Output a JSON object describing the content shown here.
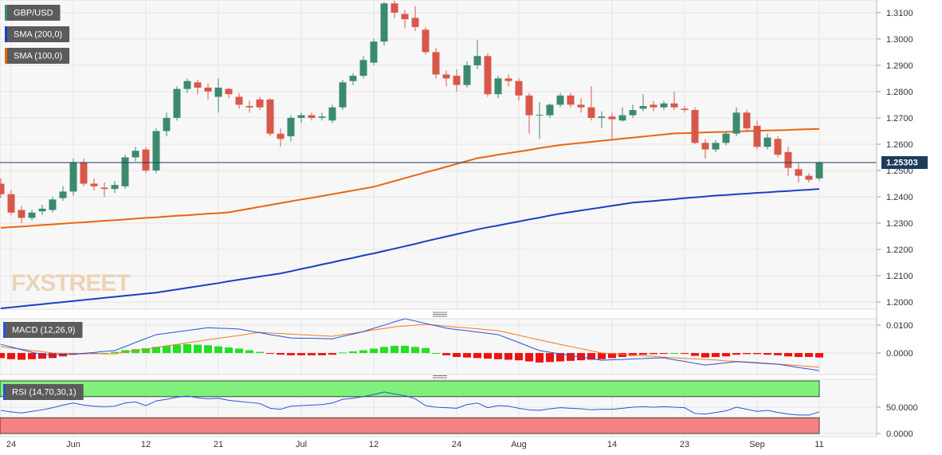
{
  "chart_data": [
    {
      "type": "candlestick",
      "name": "GBP/USD",
      "watermark": "FXSTREET",
      "categories": [
        null,
        "24",
        null,
        null,
        null,
        null,
        null,
        "Jun",
        null,
        null,
        null,
        null,
        null,
        null,
        "12",
        null,
        null,
        null,
        null,
        null,
        null,
        "21",
        null,
        null,
        null,
        null,
        null,
        null,
        null,
        "Jul",
        null,
        null,
        null,
        null,
        null,
        null,
        "12",
        null,
        null,
        null,
        null,
        null,
        null,
        null,
        "24",
        null,
        null,
        null,
        null,
        null,
        "Aug",
        null,
        null,
        null,
        null,
        null,
        null,
        null,
        null,
        "14",
        null,
        null,
        null,
        null,
        null,
        null,
        "23",
        null,
        null,
        null,
        null,
        null,
        null,
        "Sep",
        null,
        null,
        null,
        null,
        null,
        "11"
      ],
      "open": [
        1.245,
        1.241,
        1.235,
        1.232,
        1.2345,
        1.235,
        1.2395,
        1.242,
        1.253,
        1.245,
        1.2435,
        1.243,
        1.244,
        1.255,
        1.258,
        1.25,
        1.265,
        1.27,
        1.281,
        1.2835,
        1.2815,
        1.278,
        1.281,
        1.278,
        1.2745,
        1.277,
        1.277,
        1.264,
        1.263,
        1.27,
        1.271,
        1.27,
        1.269,
        1.274,
        1.284,
        1.286,
        1.291,
        1.299,
        1.3135,
        1.3095,
        1.308,
        1.3035,
        1.295,
        1.2865,
        1.286,
        1.2825,
        1.29,
        1.2935,
        1.279,
        1.285,
        1.284,
        1.2785,
        1.271,
        1.271,
        1.275,
        1.2785,
        1.275,
        1.274,
        1.27,
        1.2705,
        1.269,
        1.271,
        1.2735,
        1.275,
        1.274,
        1.2755,
        1.2735,
        1.273,
        1.2605,
        1.258,
        1.2605,
        1.264,
        1.272,
        1.267,
        1.259,
        1.262,
        1.257,
        1.2505,
        1.248,
        1.247
      ],
      "high": [
        1.247,
        1.2425,
        1.2365,
        1.235,
        1.237,
        1.24,
        1.244,
        1.2545,
        1.2545,
        1.247,
        1.2455,
        1.246,
        1.256,
        1.259,
        1.259,
        1.266,
        1.272,
        1.282,
        1.285,
        1.2845,
        1.283,
        1.285,
        1.2815,
        1.2795,
        1.2765,
        1.278,
        1.2775,
        1.266,
        1.271,
        1.272,
        1.272,
        1.272,
        1.275,
        1.2845,
        1.287,
        1.2935,
        1.3,
        1.314,
        1.3145,
        1.311,
        1.3125,
        1.3045,
        1.2965,
        1.288,
        1.2885,
        1.2915,
        1.2995,
        1.2945,
        1.286,
        1.2865,
        1.285,
        1.2795,
        1.276,
        1.2755,
        1.2795,
        1.2795,
        1.2775,
        1.282,
        1.2725,
        1.272,
        1.274,
        1.275,
        1.279,
        1.2765,
        1.2765,
        1.28,
        1.2745,
        1.274,
        1.262,
        1.2615,
        1.265,
        1.274,
        1.273,
        1.269,
        1.264,
        1.263,
        1.259,
        1.253,
        1.249,
        1.2535
      ],
      "low": [
        1.2395,
        1.233,
        1.23,
        1.231,
        1.233,
        1.234,
        1.2385,
        1.2405,
        1.244,
        1.2425,
        1.24,
        1.2415,
        1.243,
        1.2535,
        1.249,
        1.249,
        1.263,
        1.269,
        1.2795,
        1.279,
        1.277,
        1.272,
        1.2775,
        1.2735,
        1.272,
        1.273,
        1.263,
        1.259,
        1.261,
        1.268,
        1.269,
        1.269,
        1.268,
        1.273,
        1.2825,
        1.285,
        1.29,
        1.2975,
        1.308,
        1.304,
        1.303,
        1.294,
        1.285,
        1.282,
        1.28,
        1.2815,
        1.2885,
        1.278,
        1.2775,
        1.282,
        1.2765,
        1.264,
        1.262,
        1.27,
        1.274,
        1.274,
        1.272,
        1.269,
        1.266,
        1.262,
        1.2685,
        1.27,
        1.2725,
        1.2725,
        1.273,
        1.273,
        1.272,
        1.26,
        1.2545,
        1.257,
        1.2595,
        1.263,
        1.265,
        1.258,
        1.258,
        1.255,
        1.248,
        1.2455,
        1.2455,
        1.246
      ],
      "close": [
        1.241,
        1.234,
        1.232,
        1.234,
        1.2355,
        1.239,
        1.242,
        1.253,
        1.245,
        1.244,
        1.243,
        1.2445,
        1.255,
        1.2575,
        1.25,
        1.265,
        1.27,
        1.281,
        1.284,
        1.2815,
        1.28,
        1.2815,
        1.279,
        1.275,
        1.274,
        1.274,
        1.264,
        1.262,
        1.27,
        1.271,
        1.27,
        1.2705,
        1.274,
        1.2835,
        1.286,
        1.292,
        1.299,
        1.3135,
        1.31,
        1.3075,
        1.3045,
        1.295,
        1.2865,
        1.285,
        1.2825,
        1.29,
        1.2935,
        1.279,
        1.285,
        1.284,
        1.2785,
        1.271,
        1.2712,
        1.275,
        1.2785,
        1.275,
        1.274,
        1.27,
        1.2705,
        1.2695,
        1.271,
        1.273,
        1.2745,
        1.274,
        1.2755,
        1.274,
        1.273,
        1.2605,
        1.258,
        1.2605,
        1.264,
        1.272,
        1.266,
        1.259,
        1.2625,
        1.256,
        1.251,
        1.248,
        1.2465,
        1.253
      ],
      "up_color": "#3b8a70",
      "down_color": "#d9574a",
      "series": [
        {
          "name": "SMA (200,0)",
          "color": "#1a3fc4",
          "values": [
            1.1976,
            1.198,
            1.1984,
            1.1988,
            1.1992,
            1.1996,
            1.2,
            1.2004,
            1.2008,
            1.2012,
            1.2016,
            1.202,
            1.2024,
            1.2028,
            1.2032,
            1.2036,
            1.2042,
            1.2048,
            1.2054,
            1.206,
            1.2066,
            1.2072,
            1.2079,
            1.2085,
            1.2091,
            1.2097,
            1.2103,
            1.2109,
            1.2117,
            1.2126,
            1.2134,
            1.2143,
            1.2151,
            1.216,
            1.2168,
            1.2177,
            1.2185,
            1.2194,
            1.2203,
            1.2212,
            1.2221,
            1.2231,
            1.224,
            1.2249,
            1.2258,
            1.2267,
            1.2276,
            1.2284,
            1.2291,
            1.2299,
            1.2306,
            1.2314,
            1.2321,
            1.2329,
            1.2336,
            1.2342,
            1.2348,
            1.2354,
            1.236,
            1.2366,
            1.2372,
            1.2378,
            1.2381,
            1.2384,
            1.2388,
            1.2391,
            1.2395,
            1.2398,
            1.2401,
            1.2405,
            1.2407,
            1.241,
            1.2412,
            1.2415,
            1.2417,
            1.242,
            1.2422,
            1.2425,
            1.2427,
            1.243
          ]
        },
        {
          "name": "SMA (100,0)",
          "color": "#e8650f",
          "values": [
            1.2282,
            1.2285,
            1.2287,
            1.229,
            1.2293,
            1.2295,
            1.2298,
            1.2301,
            1.2303,
            1.2306,
            1.2309,
            1.2311,
            1.2314,
            1.2317,
            1.232,
            1.2322,
            1.2325,
            1.2328,
            1.233,
            1.2333,
            1.2336,
            1.2338,
            1.2341,
            1.2348,
            1.2355,
            1.2362,
            1.2369,
            1.2376,
            1.2383,
            1.239,
            1.2396,
            1.2403,
            1.241,
            1.2417,
            1.2424,
            1.2431,
            1.2438,
            1.2449,
            1.246,
            1.2471,
            1.2482,
            1.2493,
            1.2503,
            1.2514,
            1.2525,
            1.2536,
            1.2547,
            1.2553,
            1.256,
            1.2566,
            1.2572,
            1.2578,
            1.2585,
            1.2591,
            1.2597,
            1.2601,
            1.2605,
            1.2609,
            1.2613,
            1.2617,
            1.2621,
            1.2625,
            1.2629,
            1.2633,
            1.2637,
            1.2641,
            1.2642,
            1.2643,
            1.2645,
            1.2646,
            1.2647,
            1.2648,
            1.265,
            1.2651,
            1.2652,
            1.2653,
            1.2654,
            1.2656,
            1.2657,
            1.2658
          ]
        }
      ],
      "last_price": {
        "value": 1.25303,
        "label": "1.25303"
      },
      "last_price_color": "#1d3b5c",
      "ylim": [
        1.1973,
        1.3148
      ],
      "yticks": [
        {
          "value": 1.2,
          "label": "1.2000"
        },
        {
          "value": 1.21,
          "label": "1.2100"
        },
        {
          "value": 1.22,
          "label": "1.2200"
        },
        {
          "value": 1.23,
          "label": "1.2300"
        },
        {
          "value": 1.24,
          "label": "1.2400"
        },
        {
          "value": 1.25,
          "label": "1.2500"
        },
        {
          "value": 1.26,
          "label": "1.2600"
        },
        {
          "value": 1.27,
          "label": "1.2700"
        },
        {
          "value": 1.28,
          "label": "1.2800"
        },
        {
          "value": 1.29,
          "label": "1.2900"
        },
        {
          "value": 1.3,
          "label": "1.3000"
        },
        {
          "value": 1.31,
          "label": "1.3100"
        }
      ],
      "grid": true
    },
    {
      "type": "macd",
      "name": "MACD (12,26,9)",
      "macd": [
        0.0031,
        0.0022,
        0.0012,
        0.0003,
        -0.0006,
        -0.0006,
        -0.0005,
        -0.0005,
        -0.0001,
        0.0002,
        0.0006,
        0.0009,
        0.0023,
        0.0038,
        0.0052,
        0.0066,
        0.0071,
        0.0076,
        0.0081,
        0.0086,
        0.0091,
        0.0089,
        0.0088,
        0.0086,
        0.0079,
        0.0073,
        0.0066,
        0.006,
        0.0054,
        0.0053,
        0.0053,
        0.0052,
        0.0051,
        0.006,
        0.0068,
        0.0077,
        0.0089,
        0.01,
        0.0112,
        0.0123,
        0.0115,
        0.0106,
        0.0098,
        0.0089,
        0.0084,
        0.008,
        0.0075,
        0.0071,
        0.0066,
        0.0052,
        0.0038,
        0.0023,
        0.0009,
        0.0003,
        -0.0003,
        -0.0009,
        -0.0014,
        -0.002,
        -0.0026,
        -0.0024,
        -0.0023,
        -0.0021,
        -0.002,
        -0.0018,
        -0.0017,
        -0.0024,
        -0.003,
        -0.0037,
        -0.0043,
        -0.0039,
        -0.0035,
        -0.0031,
        -0.0033,
        -0.0036,
        -0.0038,
        -0.004,
        -0.0046,
        -0.0052,
        -0.0057,
        -0.0063
      ],
      "signal": [
        0.0023,
        0.0018,
        0.0014,
        0.0009,
        0.0005,
        0.0,
        -0.0001,
        -0.0001,
        -0.0002,
        -0.0002,
        -0.0003,
        -0.0003,
        0.0003,
        0.0009,
        0.0014,
        0.002,
        0.0026,
        0.0031,
        0.0037,
        0.0042,
        0.0048,
        0.0053,
        0.0058,
        0.0063,
        0.0069,
        0.0074,
        0.0072,
        0.007,
        0.0068,
        0.0066,
        0.0064,
        0.0062,
        0.006,
        0.0066,
        0.0071,
        0.0077,
        0.0083,
        0.0088,
        0.0094,
        0.0097,
        0.01,
        0.0103,
        0.01,
        0.0096,
        0.0093,
        0.009,
        0.0087,
        0.0083,
        0.008,
        0.0072,
        0.0064,
        0.0055,
        0.0047,
        0.0039,
        0.0031,
        0.0023,
        0.0016,
        0.0008,
        0.0,
        -0.0002,
        -0.0005,
        -0.0007,
        -0.001,
        -0.0012,
        -0.0015,
        -0.0017,
        -0.0019,
        -0.0021,
        -0.0023,
        -0.0025,
        -0.0028,
        -0.003,
        -0.0032,
        -0.0034,
        -0.0037,
        -0.004,
        -0.0042,
        -0.0045,
        -0.0048,
        -0.0051
      ],
      "histogram": [
        -0.0018,
        -0.0022,
        -0.0024,
        -0.0022,
        -0.002,
        -0.0018,
        -0.0012,
        -0.0006,
        -0.0004,
        -0.0002,
        0.0,
        0.0004,
        0.001,
        0.0014,
        0.0017,
        0.0022,
        0.0026,
        0.003,
        0.0032,
        0.003,
        0.0028,
        0.0024,
        0.002,
        0.0016,
        0.001,
        0.0004,
        -0.0002,
        -0.0006,
        -0.0008,
        -0.0008,
        -0.0008,
        -0.0008,
        -0.0006,
        0.0002,
        0.0006,
        0.001,
        0.0016,
        0.0022,
        0.0026,
        0.0026,
        0.0022,
        0.0018,
        0.0,
        -0.0008,
        -0.0014,
        -0.0016,
        -0.0018,
        -0.002,
        -0.0022,
        -0.0024,
        -0.0026,
        -0.003,
        -0.0034,
        -0.0032,
        -0.003,
        -0.0028,
        -0.0026,
        -0.0024,
        -0.0022,
        -0.0018,
        -0.0014,
        -0.001,
        -0.0006,
        -0.0004,
        -0.0002,
        0.0,
        -0.0002,
        -0.001,
        -0.0016,
        -0.0014,
        -0.0012,
        -0.0006,
        -0.0004,
        -0.0004,
        -0.0006,
        -0.0008,
        -0.0012,
        -0.0014,
        -0.0014,
        -0.0016
      ],
      "macd_color": "#2a52d8",
      "signal_color": "#f07a28",
      "positive_color": "#22e022",
      "negative_color": "#ee1111",
      "legend_color": "#2a52d8",
      "ylim": [
        -0.0077,
        0.0123
      ],
      "yticks": [
        {
          "value": 0,
          "label": "0.0000"
        },
        {
          "value": 0.01,
          "label": "0.0100"
        }
      ],
      "grid": true
    },
    {
      "type": "rsi",
      "name": "RSI (14,70,30,1)",
      "values": [
        44,
        41,
        39,
        42,
        45,
        49,
        54,
        58,
        54,
        52,
        51,
        52,
        58,
        60,
        53,
        62,
        65,
        69,
        71,
        68,
        66,
        67,
        63,
        61,
        59,
        57,
        48,
        46,
        52,
        53,
        54,
        55,
        58,
        65,
        67,
        70,
        74,
        79,
        75,
        72,
        66,
        53,
        50,
        49,
        48,
        55,
        58,
        49,
        53,
        52,
        48,
        45,
        44,
        47,
        49,
        48,
        47,
        45,
        46,
        46,
        48,
        50,
        51,
        50,
        51,
        50,
        49,
        38,
        37,
        40,
        43,
        50,
        46,
        42,
        44,
        40,
        37,
        35,
        35,
        41
      ],
      "color": "#2a52d8",
      "bands": [
        {
          "from": 70,
          "to": 100,
          "color": "#80f07c"
        },
        {
          "from": 0,
          "to": 30,
          "color": "#f58282"
        }
      ],
      "ylim": [
        -6,
        103
      ],
      "yticks": [
        {
          "value": 0,
          "label": "0.0000"
        },
        {
          "value": 50,
          "label": "50.0000"
        }
      ],
      "grid": true
    }
  ]
}
